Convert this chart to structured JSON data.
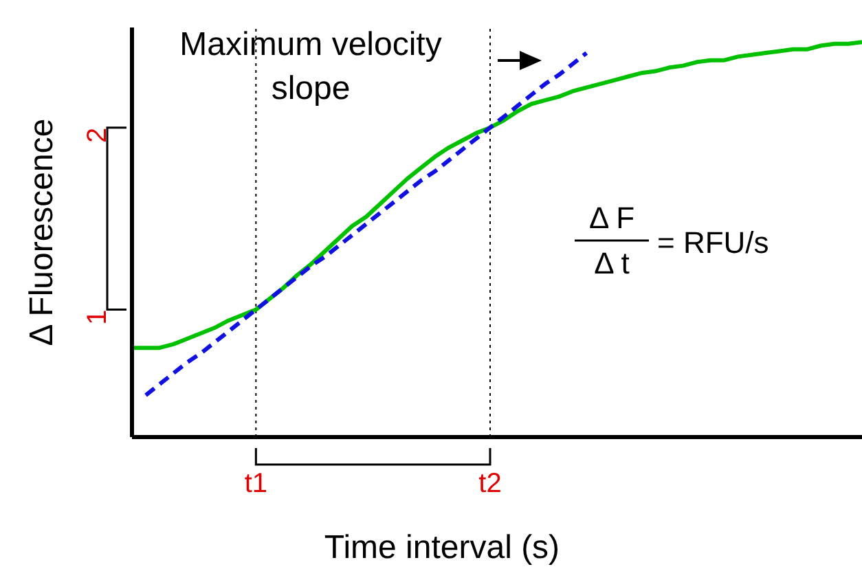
{
  "chart_data": {
    "type": "line",
    "xlabel": "Time interval (s)",
    "ylabel": "Δ Fluorescence",
    "annotations": [
      "Maximum velocity slope",
      "Δ F",
      "Δ t",
      "= RFU/s"
    ],
    "categories": [
      null,
      null,
      null,
      null,
      null,
      null,
      null,
      null,
      null,
      "t1",
      null,
      null,
      null,
      null,
      null,
      null,
      null,
      null,
      null,
      null,
      null,
      null,
      null,
      null,
      null,
      null,
      "t2",
      null,
      null,
      null,
      null,
      null,
      null,
      null,
      null,
      null,
      null,
      null,
      null,
      null,
      null,
      null,
      null,
      null,
      null,
      null,
      null,
      null,
      null,
      null,
      null,
      null,
      null,
      null
    ],
    "ylim": [
      0.3,
      2.55
    ],
    "yticks": [
      1,
      2
    ],
    "series": [
      {
        "color": "#00c000",
        "line_style": "solid",
        "values": [
          0.79,
          0.79,
          0.79,
          0.81,
          0.84,
          0.87,
          0.9,
          0.94,
          0.97,
          1.0,
          1.06,
          1.12,
          1.19,
          1.25,
          1.32,
          1.39,
          1.46,
          1.51,
          1.58,
          1.65,
          1.72,
          1.78,
          1.84,
          1.89,
          1.93,
          1.97,
          2.0,
          2.04,
          2.09,
          2.13,
          2.15,
          2.17,
          2.2,
          2.22,
          2.24,
          2.26,
          2.28,
          2.3,
          2.31,
          2.33,
          2.34,
          2.36,
          2.37,
          2.37,
          2.39,
          2.4,
          2.41,
          2.42,
          2.43,
          2.43,
          2.45,
          2.46,
          2.46,
          2.47
        ]
      },
      {
        "color": "#1010e0",
        "line_style": "dashed",
        "values": [
          null,
          0.53,
          0.59,
          0.65,
          0.71,
          0.76,
          0.82,
          0.88,
          0.94,
          1.0,
          1.06,
          1.12,
          1.18,
          1.24,
          1.29,
          1.35,
          1.41,
          1.47,
          1.53,
          1.59,
          1.65,
          1.71,
          1.76,
          1.82,
          1.88,
          1.94,
          2.0,
          2.06,
          2.12,
          2.18,
          2.24,
          2.29,
          2.35,
          2.41,
          null,
          null,
          null,
          null,
          null,
          null,
          null,
          null,
          null,
          null,
          null,
          null,
          null,
          null,
          null,
          null,
          null,
          null,
          null,
          null
        ]
      }
    ],
    "ref_lines": [
      {
        "axis": "x",
        "value": "t1",
        "color": "#000000",
        "line_style": "dotted"
      },
      {
        "axis": "x",
        "value": "t2",
        "color": "#000000",
        "line_style": "dotted"
      }
    ],
    "grid": false,
    "legend": false,
    "marker": "none"
  }
}
